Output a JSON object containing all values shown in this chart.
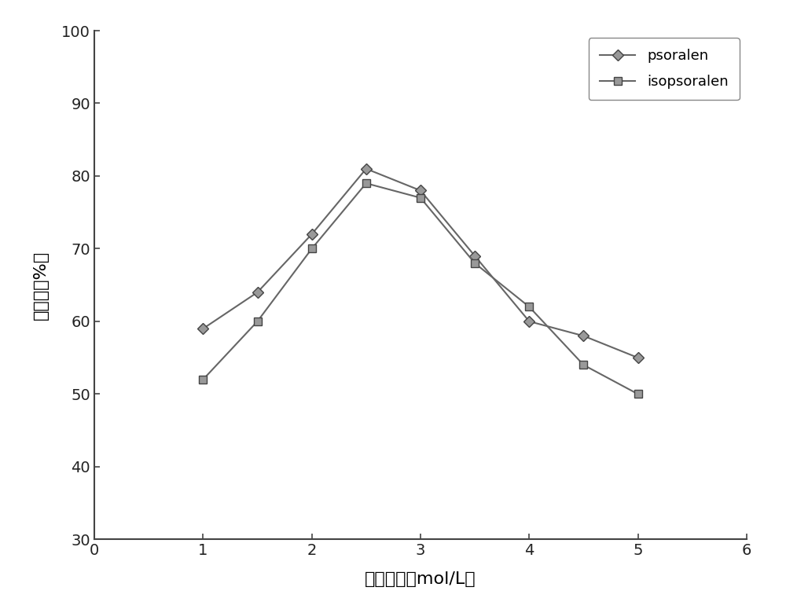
{
  "psoralen_x": [
    1,
    1.5,
    2,
    2.5,
    3,
    3.5,
    4,
    4.5,
    5
  ],
  "psoralen_y": [
    59,
    64,
    72,
    81,
    78,
    69,
    60,
    58,
    55
  ],
  "isopsoralen_x": [
    1,
    1.5,
    2,
    2.5,
    3,
    3.5,
    4,
    4.5,
    5
  ],
  "isopsoralen_y": [
    52,
    60,
    70,
    79,
    77,
    68,
    62,
    54,
    50
  ],
  "psoralen_color": "#666666",
  "isopsoralen_color": "#666666",
  "xlabel": "盐的浓度（mol/L）",
  "ylabel": "回收率（%）",
  "xlim": [
    0,
    6
  ],
  "ylim": [
    30,
    100
  ],
  "xticks": [
    0,
    1,
    2,
    3,
    4,
    5,
    6
  ],
  "yticks": [
    30,
    40,
    50,
    60,
    70,
    80,
    90,
    100
  ],
  "legend_psoralen": "psoralen",
  "legend_isopsoralen": "isopsoralen",
  "figsize": [
    10.0,
    7.8
  ],
  "dpi": 100
}
